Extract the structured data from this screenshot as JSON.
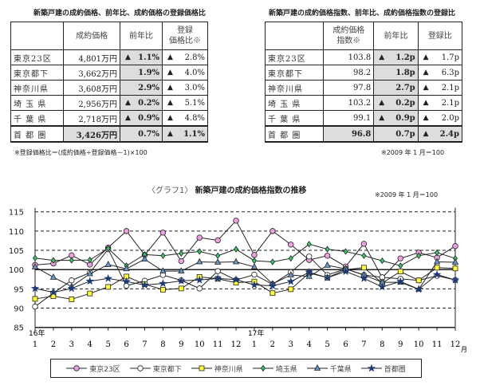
{
  "table1": {
    "title": "新築戸建の成約価格、前年比、成約価格の登録価格比",
    "headers": [
      "",
      "成約価格",
      "前年比",
      "登録\n価格比※"
    ],
    "rows": [
      {
        "area": "東京23区",
        "price": "4,801万円",
        "yoy_mark": "▲",
        "yoy": "1.1%",
        "reg_mark": "▲",
        "reg": "2.8%"
      },
      {
        "area": "東京都下",
        "price": "3,662万円",
        "yoy_mark": "",
        "yoy": "1.9%",
        "reg_mark": "▲",
        "reg": "4.0%"
      },
      {
        "area": "神奈川県",
        "price": "3,608万円",
        "yoy_mark": "",
        "yoy": "2.9%",
        "reg_mark": "▲",
        "reg": "3.0%"
      },
      {
        "area": "埼 玉 県",
        "price": "2,956万円",
        "yoy_mark": "▲",
        "yoy": "0.2%",
        "reg_mark": "▲",
        "reg": "5.1%"
      },
      {
        "area": "千 葉 県",
        "price": "2,718万円",
        "yoy_mark": "▲",
        "yoy": "0.9%",
        "reg_mark": "▲",
        "reg": "4.8%"
      },
      {
        "area": "首 都 圏",
        "price": "3,426万円",
        "yoy_mark": "",
        "yoy": "0.7%",
        "reg_mark": "▲",
        "reg": "1.1%"
      }
    ],
    "footnote": "※登録価格比＝(成約価格÷登録価格－1)×100"
  },
  "table2": {
    "title": "新築戸建の成約価格指数、前年比、成約価格指数の登録比",
    "headers": [
      "",
      "成約価格\n指数※",
      "前年比",
      "登録比"
    ],
    "rows": [
      {
        "area": "東京23区",
        "price": "103.8",
        "yoy_mark": "▲",
        "yoy": "1.2p",
        "reg_mark": "▲",
        "reg": "1.7p"
      },
      {
        "area": "東京都下",
        "price": "98.2",
        "yoy_mark": "",
        "yoy": "1.8p",
        "reg_mark": "▲",
        "reg": "6.3p"
      },
      {
        "area": "神奈川県",
        "price": "97.8",
        "yoy_mark": "",
        "yoy": "2.7p",
        "reg_mark": "▲",
        "reg": "2.1p"
      },
      {
        "area": "埼 玉 県",
        "price": "103.2",
        "yoy_mark": "▲",
        "yoy": "0.2p",
        "reg_mark": "▲",
        "reg": "2.1p"
      },
      {
        "area": "千 葉 県",
        "price": "99.1",
        "yoy_mark": "▲",
        "yoy": "0.9p",
        "reg_mark": "▲",
        "reg": "2.0p"
      },
      {
        "area": "首 都 圏",
        "price": "96.8",
        "yoy_mark": "",
        "yoy": "0.7p",
        "reg_mark": "▲",
        "reg": "2.4p"
      }
    ],
    "footnote": "※2009 年 1 月＝100"
  },
  "chart_data": {
    "type": "line",
    "title_prefix": "〈グラフ1〉",
    "title": "新築戸建の成約価格指数の推移",
    "note": "※2009 年 1 月＝100",
    "year_labels": [
      {
        "at": 0,
        "label": "16年"
      },
      {
        "at": 12,
        "label": "17年"
      }
    ],
    "month_unit": "月",
    "categories": [
      "1",
      "2",
      "3",
      "4",
      "5",
      "6",
      "7",
      "8",
      "9",
      "10",
      "11",
      "12",
      "1",
      "2",
      "3",
      "4",
      "5",
      "6",
      "7",
      "8",
      "9",
      "10",
      "11",
      "12"
    ],
    "ylim": [
      85,
      115
    ],
    "yticks": [
      85,
      90,
      95,
      100,
      105,
      110,
      115
    ],
    "grid": "dashed horizontal",
    "legend": "bottom",
    "series": [
      {
        "name": "東京23区",
        "marker": "circle",
        "color": "#f0a0e0",
        "values": [
          101.2,
          101.6,
          103.7,
          101.3,
          105.7,
          110.0,
          103.8,
          109.6,
          102.2,
          108.3,
          107.6,
          112.7,
          103.8,
          110.0,
          106.5,
          102.5,
          103.6,
          100.8,
          106.7,
          97.9,
          102.9,
          104.4,
          103.1,
          106.1
        ]
      },
      {
        "name": "東京都下",
        "marker": "circle",
        "color": "#ffffff",
        "values": [
          90.4,
          93.9,
          97.2,
          99.2,
          105.3,
          95.8,
          97.1,
          98.6,
          97.2,
          95.1,
          99.6,
          97.3,
          98.7,
          96.2,
          99.3,
          103.4,
          98.6,
          100.2,
          98.6,
          98.0,
          97.6,
          97.2,
          98.4,
          97.3
        ]
      },
      {
        "name": "神奈川県",
        "marker": "square",
        "color": "#ffff33",
        "values": [
          92.4,
          93.1,
          92.3,
          93.8,
          95.5,
          98.2,
          96.2,
          94.8,
          95.1,
          98.1,
          97.6,
          96.6,
          96.9,
          93.9,
          94.9,
          99.1,
          97.9,
          100.0,
          100.5,
          96.5,
          99.5,
          97.2,
          100.5,
          100.3
        ]
      },
      {
        "name": "埼玉県",
        "marker": "diamond",
        "color": "#33cc66",
        "values": [
          103.0,
          102.4,
          102.4,
          102.5,
          105.5,
          101.0,
          103.9,
          103.6,
          104.2,
          104.7,
          103.6,
          105.3,
          102.3,
          102.0,
          102.9,
          106.6,
          105.3,
          104.7,
          103.6,
          102.3,
          101.0,
          103.6,
          104.4,
          102.9
        ]
      },
      {
        "name": "千葉県",
        "marker": "triangle",
        "color": "#6699cc",
        "values": [
          100.7,
          98.0,
          95.6,
          98.9,
          101.3,
          100.2,
          102.7,
          99.6,
          99.6,
          102.0,
          101.9,
          102.0,
          100.7,
          96.3,
          98.6,
          98.2,
          101.1,
          100.2,
          98.6,
          96.7,
          96.7,
          94.9,
          102.0,
          101.9
        ]
      },
      {
        "name": "首都圏",
        "marker": "star",
        "color": "#1a3a7a",
        "values": [
          95.1,
          94.1,
          95.1,
          97.0,
          97.7,
          96.9,
          96.0,
          96.4,
          97.1,
          97.3,
          97.7,
          97.4,
          96.0,
          95.8,
          96.9,
          99.3,
          97.9,
          99.5,
          97.7,
          95.5,
          96.9,
          94.9,
          98.7,
          97.3
        ]
      }
    ]
  }
}
